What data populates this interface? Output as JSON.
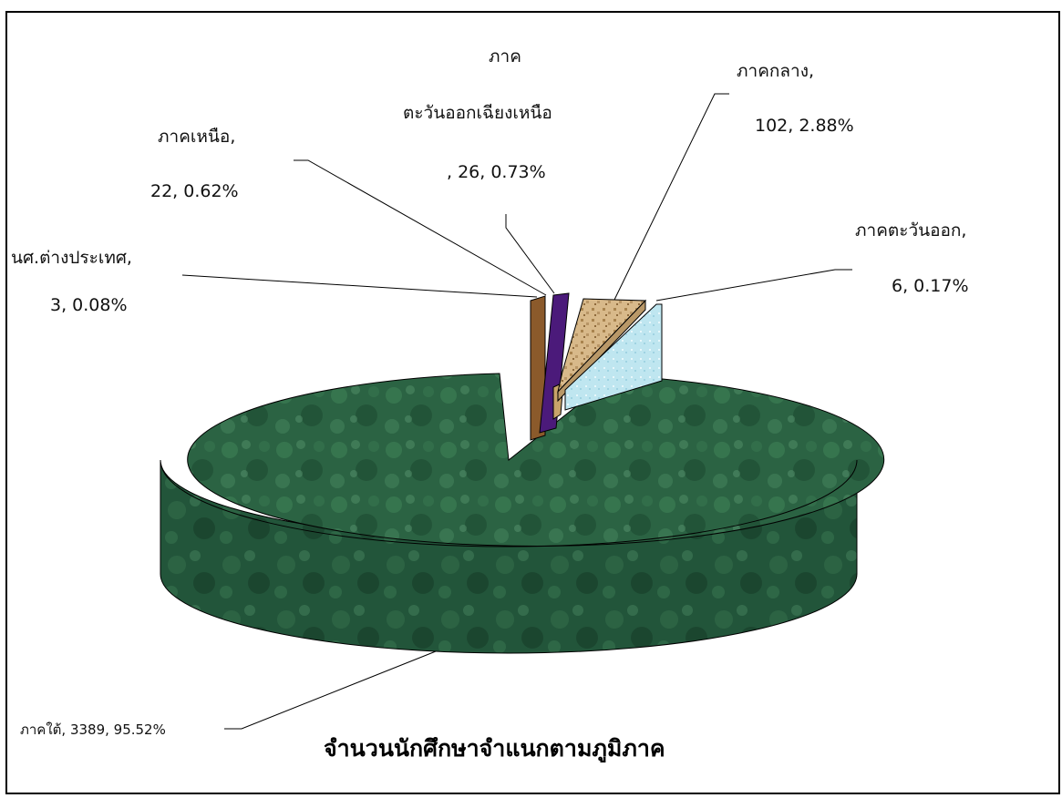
{
  "chart_data": {
    "type": "pie",
    "title": "จำนวนนักศึกษาจำแนกตามภูมิภาค",
    "slices": [
      {
        "name": "ภาคใต้",
        "value": 3389,
        "percent": "95.52%",
        "label": "ภาคใต้, 3389, 95.52%",
        "color": "#2d6a45"
      },
      {
        "name": "นศ.ต่างประเทศ",
        "value": 3,
        "percent": "0.08%",
        "label_line1": "นศ.ต่างประเทศ,",
        "label_line2": "3, 0.08%",
        "color": "#8b5a2b"
      },
      {
        "name": "ภาคเหนือ",
        "value": 22,
        "percent": "0.62%",
        "label_line1": "ภาคเหนือ,",
        "label_line2": "22, 0.62%",
        "color": "#4b1a7a"
      },
      {
        "name": "ภาคตะวันออกเฉียงเหนือ",
        "value": 26,
        "percent": "0.73%",
        "label_line1": "ภาค",
        "label_line2": "ตะวันออกเฉียงเหนือ",
        "label_line3": ", 26, 0.73%",
        "color": "#c9a46a"
      },
      {
        "name": "ภาคกลาง",
        "value": 102,
        "percent": "2.88%",
        "label_line1": "ภาคกลาง,",
        "label_line2": "102, 2.88%",
        "color": "#d2b48c"
      },
      {
        "name": "ภาคตะวันออก",
        "value": 6,
        "percent": "0.17%",
        "label_line1": "ภาคตะวันออก,",
        "label_line2": "6, 0.17%",
        "color": "#bfe6f0"
      }
    ]
  }
}
